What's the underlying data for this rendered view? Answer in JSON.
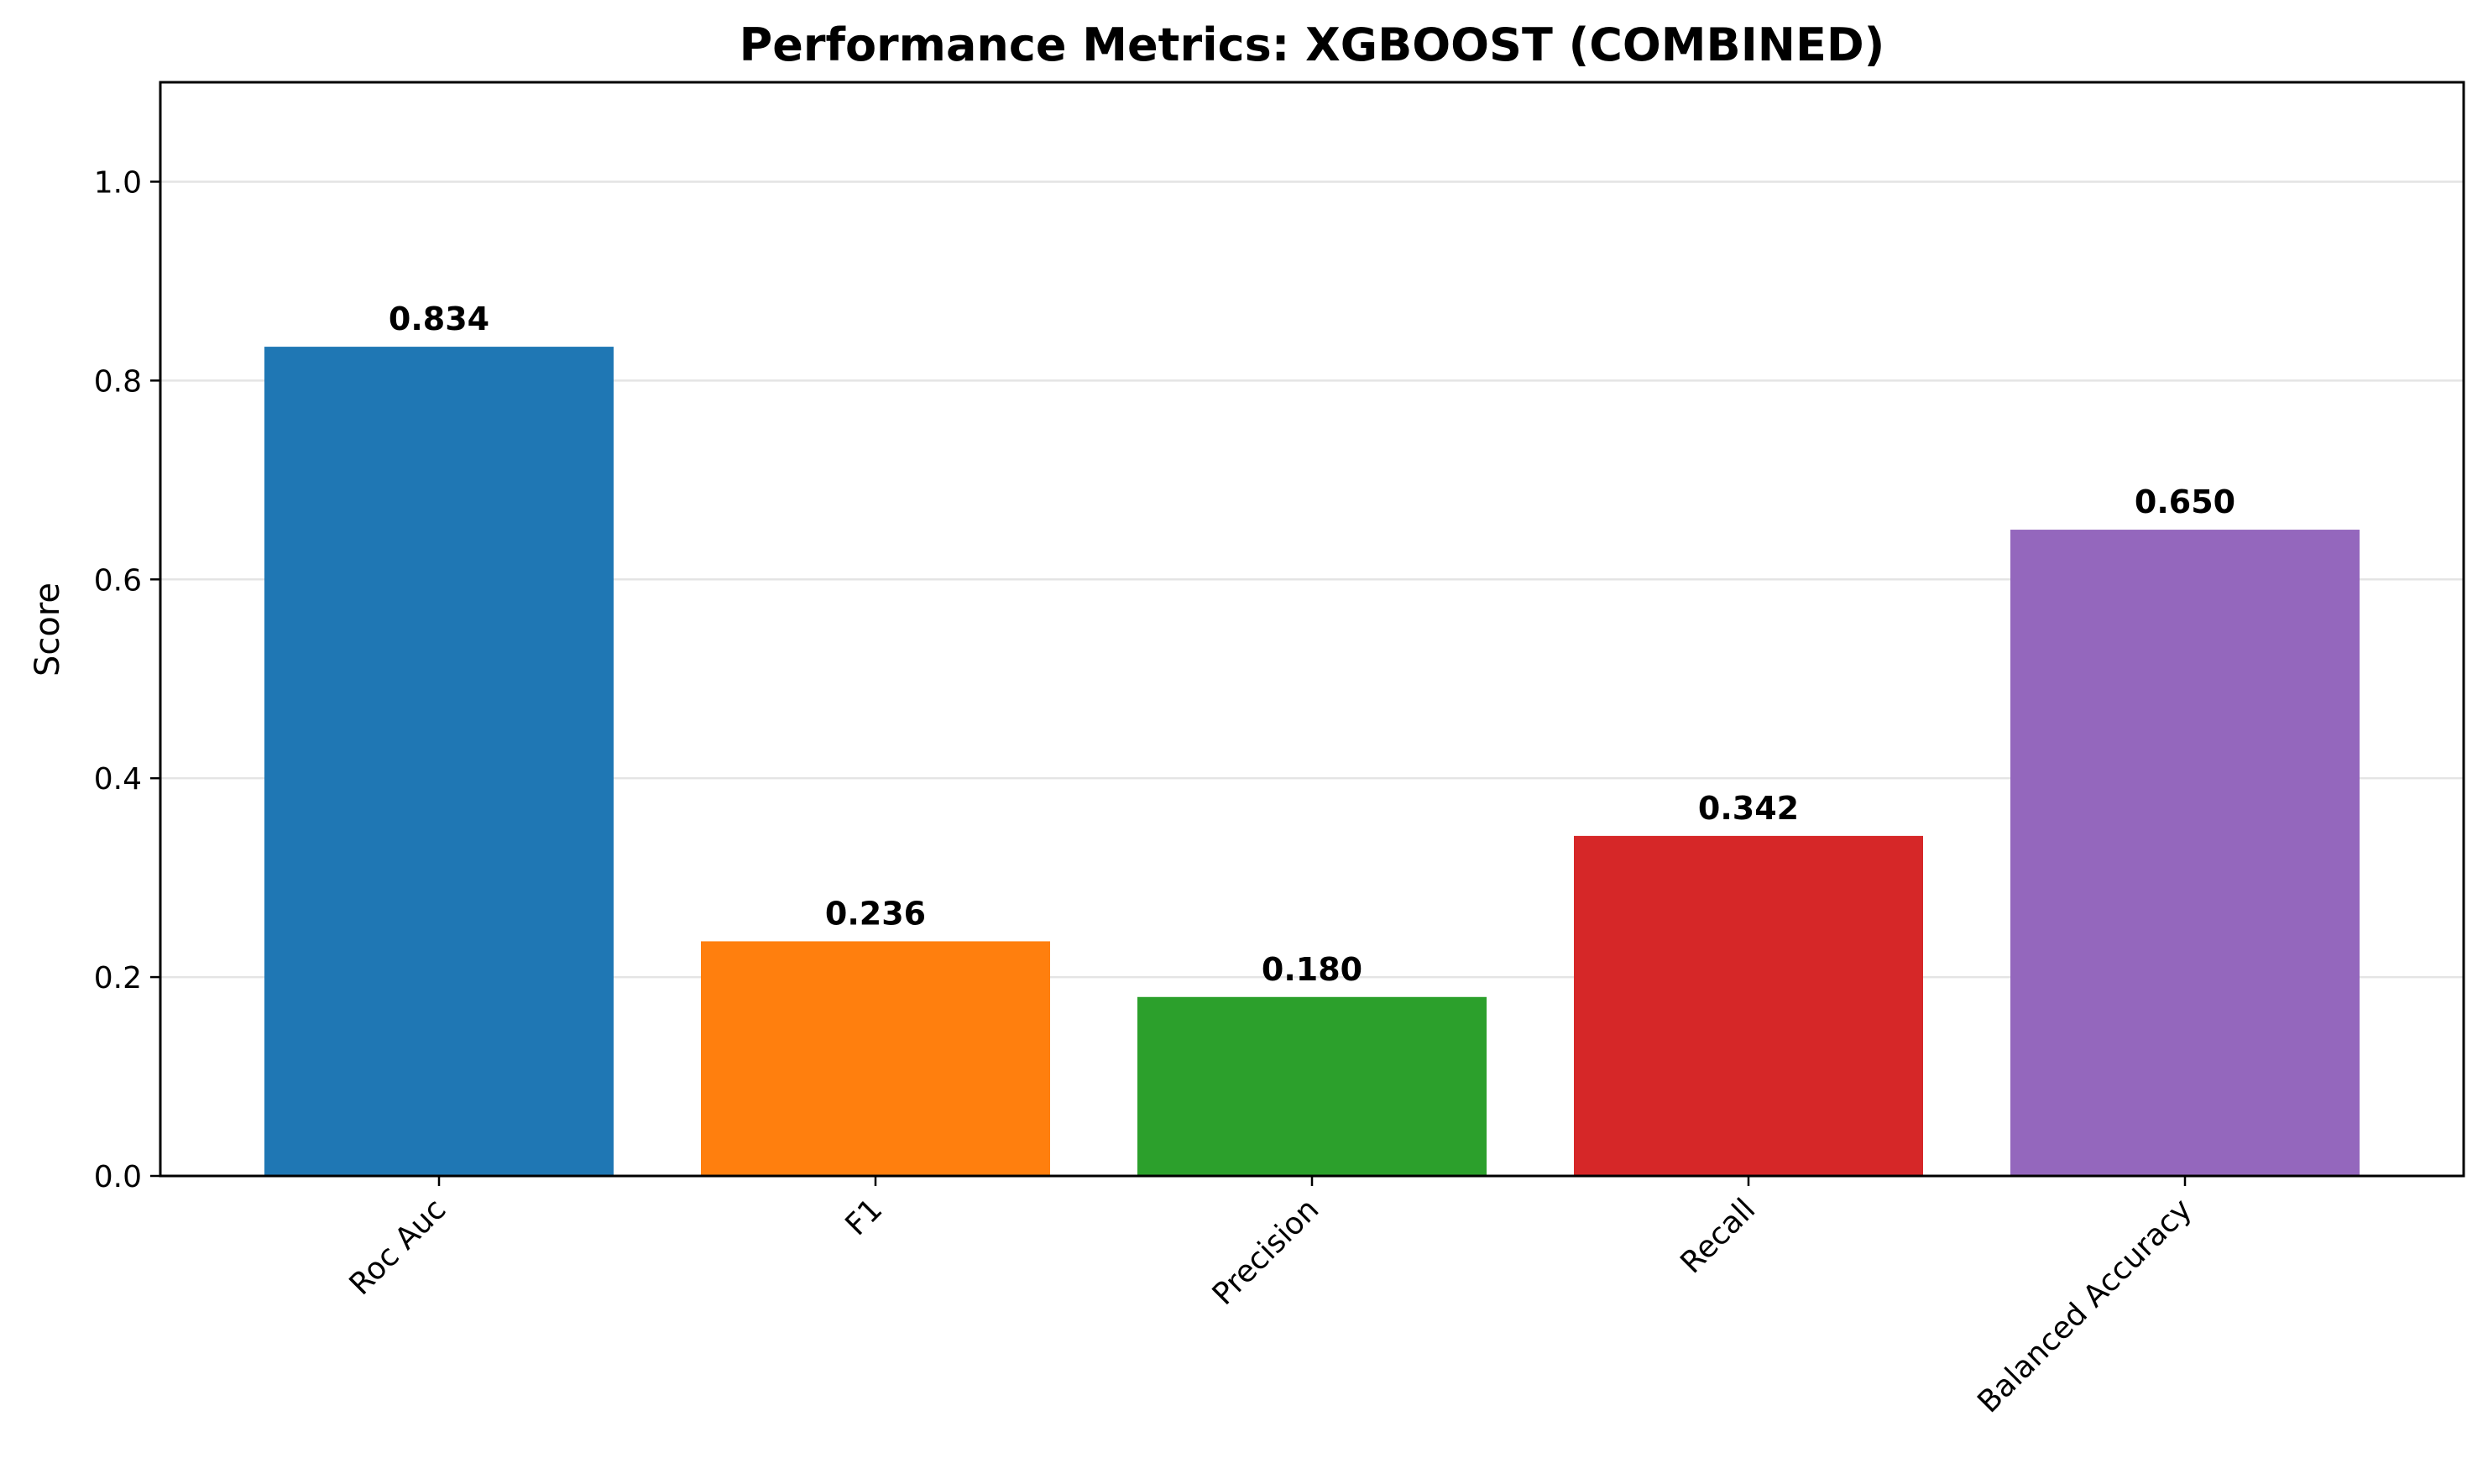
{
  "chart_data": {
    "type": "bar",
    "title": "Performance Metrics: XGBOOST (COMBINED)",
    "xlabel": "",
    "ylabel": "Score",
    "ylim": [
      0,
      1.1
    ],
    "yticks": [
      0.0,
      0.2,
      0.4,
      0.6,
      0.8,
      1.0
    ],
    "ytick_labels": [
      "0.0",
      "0.2",
      "0.4",
      "0.6",
      "0.8",
      "1.0"
    ],
    "grid": "y-axis",
    "categories": [
      "Roc Auc",
      "F1",
      "Precision",
      "Recall",
      "Balanced Accuracy"
    ],
    "values": [
      0.834,
      0.236,
      0.18,
      0.342,
      0.65
    ],
    "value_labels": [
      "0.834",
      "0.236",
      "0.180",
      "0.342",
      "0.650"
    ],
    "colors": [
      "#1f77b4",
      "#ff7f0e",
      "#2ca02c",
      "#d62728",
      "#9467bd"
    ],
    "xtick_rotation": "45 degrees"
  }
}
